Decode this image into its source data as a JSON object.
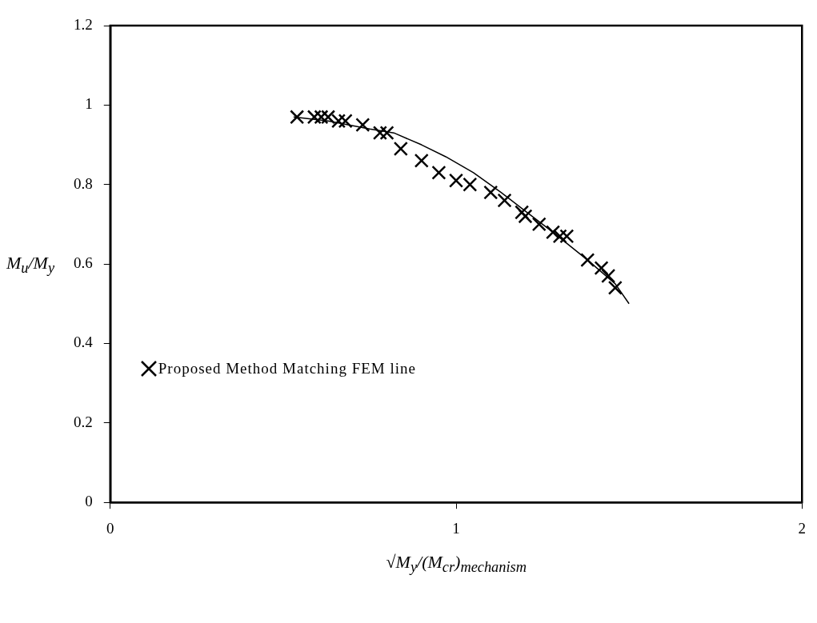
{
  "chart_data": {
    "type": "scatter",
    "xlabel": "√M$_{y}$/(M$_{cr}$)$_{mechanism}$",
    "ylabel": "M$_{u}$/M$_{y}$",
    "xlim": [
      0,
      2
    ],
    "xticks": [
      0,
      1,
      2
    ],
    "ylim": [
      0,
      1.2
    ],
    "yticks": [
      0,
      0.2,
      0.4,
      0.6,
      0.8,
      1,
      1.2
    ],
    "grid": false,
    "legend": "bottom left",
    "marker": "cross",
    "series": [
      {
        "name": "Proposed Method Matching FEM line",
        "color": "#000000",
        "x": [
          0.54,
          0.59,
          0.61,
          0.63,
          0.66,
          0.68,
          0.73,
          0.78,
          0.8,
          0.84,
          0.9,
          0.95,
          1.0,
          1.04,
          1.1,
          1.14,
          1.19,
          1.2,
          1.24,
          1.28,
          1.3,
          1.32,
          1.38,
          1.42,
          1.44,
          1.46
        ],
        "values": [
          0.97,
          0.97,
          0.97,
          0.97,
          0.96,
          0.96,
          0.95,
          0.93,
          0.93,
          0.89,
          0.86,
          0.83,
          0.81,
          0.8,
          0.78,
          0.76,
          0.73,
          0.72,
          0.7,
          0.68,
          0.67,
          0.67,
          0.61,
          0.59,
          0.57,
          0.54
        ]
      },
      {
        "type": "line",
        "color": "#000000",
        "marker": "none",
        "line_style": "solid",
        "x": [
          0.53,
          0.63,
          0.75,
          0.82,
          0.9,
          0.97,
          1.05,
          1.13,
          1.19,
          1.28,
          1.38,
          1.46,
          1.5
        ],
        "values": [
          0.97,
          0.96,
          0.94,
          0.93,
          0.9,
          0.87,
          0.83,
          0.78,
          0.74,
          0.68,
          0.61,
          0.55,
          0.5
        ]
      }
    ]
  }
}
